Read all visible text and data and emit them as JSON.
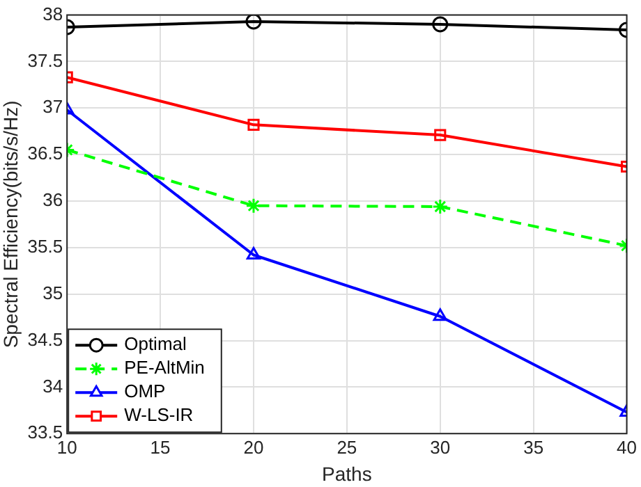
{
  "chart_data": {
    "type": "line",
    "xlabel": "Paths",
    "ylabel": "Spectral Efficiency(bits/s/Hz)",
    "x": [
      10,
      20,
      30,
      40
    ],
    "series": [
      {
        "name": "Optimal",
        "color": "#000000",
        "marker": "circle",
        "line_style": "solid",
        "values": [
          37.87,
          37.93,
          37.9,
          37.84
        ]
      },
      {
        "name": "PE-AltMin",
        "color": "#00ff00",
        "marker": "cross",
        "line_style": "dashed",
        "values": [
          36.55,
          35.95,
          35.94,
          35.52
        ]
      },
      {
        "name": "OMP",
        "color": "#0000ff",
        "marker": "triangle",
        "line_style": "solid",
        "values": [
          36.98,
          35.42,
          34.76,
          33.73
        ]
      },
      {
        "name": "W-LS-IR",
        "color": "#ff0000",
        "marker": "square",
        "line_style": "solid",
        "values": [
          37.33,
          36.82,
          36.71,
          36.37
        ]
      }
    ],
    "xlim": [
      10,
      40
    ],
    "xticks": [
      10,
      15,
      20,
      25,
      30,
      35,
      40
    ],
    "ylim": [
      33.5,
      38
    ],
    "yticks": [
      33.5,
      34,
      34.5,
      35,
      35.5,
      36,
      36.5,
      37,
      37.5,
      38
    ],
    "grid": true,
    "legend": "bottom left"
  }
}
